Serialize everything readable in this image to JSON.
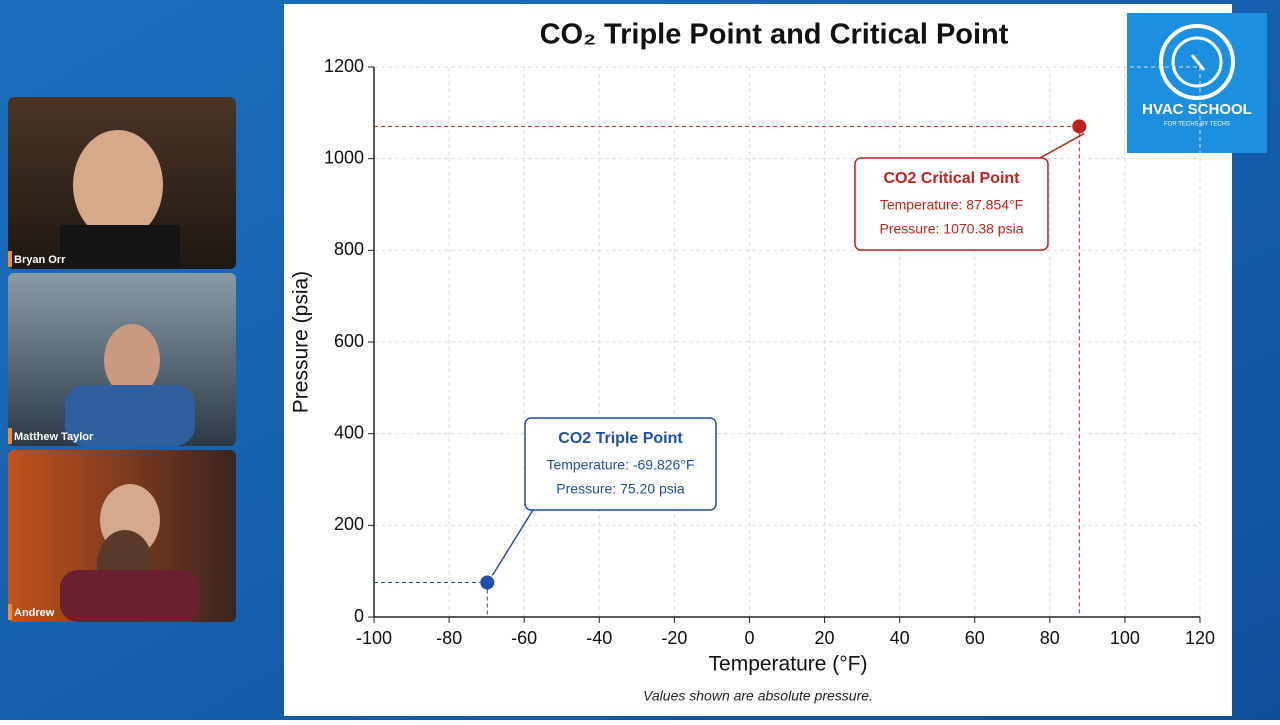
{
  "participants": [
    "Bryan Orr",
    "Matthew Taylor",
    "Andrew"
  ],
  "logo": {
    "title": "HVAC SCHOOL",
    "tagline": "FOR TECHS BY TECHS"
  },
  "chart_data": {
    "type": "scatter",
    "title": "CO₂ Triple Point and Critical Point",
    "xlabel": "Temperature (°F)",
    "ylabel": "Pressure (psia)",
    "note": "Values shown are absolute pressure.",
    "xlim": [
      -100,
      120
    ],
    "xticks": [
      -100,
      -80,
      -60,
      -40,
      -20,
      0,
      20,
      40,
      60,
      80,
      100,
      120
    ],
    "ylim": [
      0,
      1200
    ],
    "yticks": [
      0,
      200,
      400,
      600,
      800,
      1000,
      1200
    ],
    "grid": true,
    "series": [
      {
        "name": "CO2 Triple Point",
        "color": "#1f4fa8",
        "x": [
          -69.826
        ],
        "values": [
          75.2
        ],
        "annotation": [
          "Temperature: -69.826°F",
          "Pressure:  75.20 psia"
        ]
      },
      {
        "name": "CO2 Critical Point",
        "color": "#c0211c",
        "x": [
          87.854
        ],
        "values": [
          1070.38
        ],
        "annotation": [
          "Temperature: 87.854°F",
          "Pressure: 1070.38 psia"
        ]
      }
    ]
  }
}
